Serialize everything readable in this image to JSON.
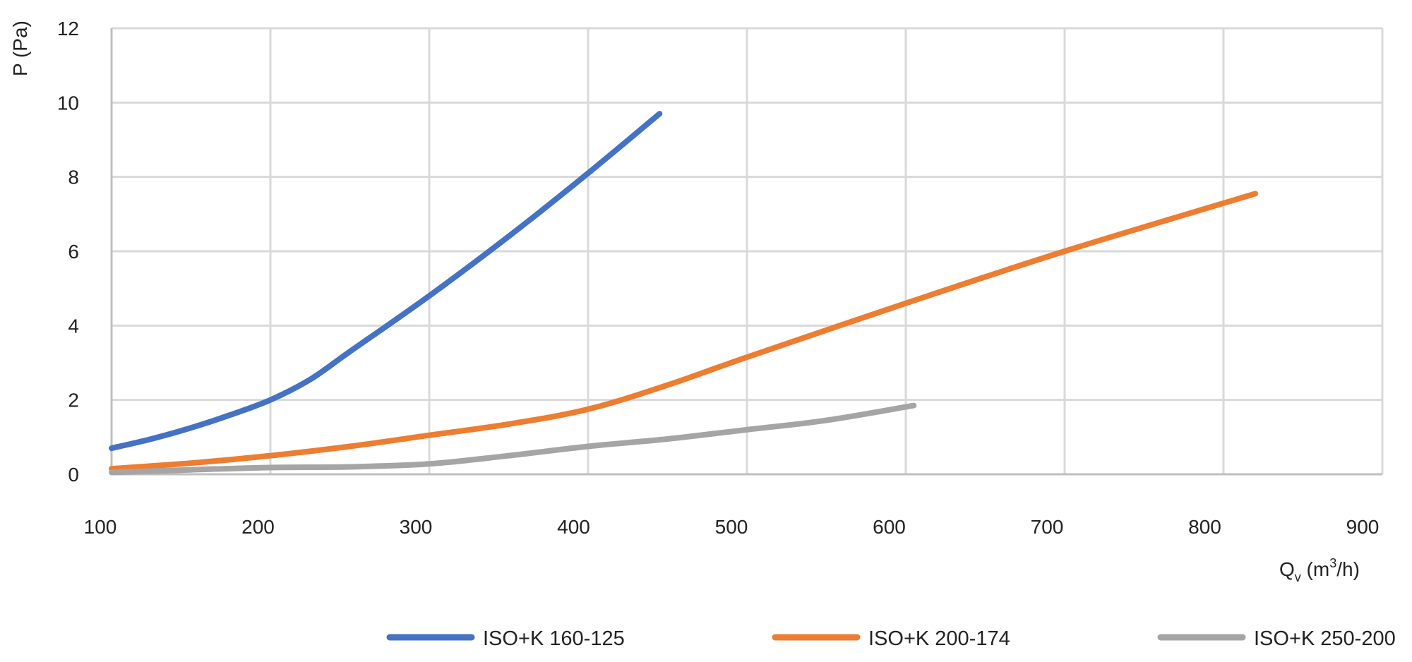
{
  "chart_data": {
    "type": "line",
    "title": "",
    "xlabel": {
      "main": "Q",
      "sub": "v",
      "unit_pre": " (m",
      "sup": "3",
      "unit_post": "/h)"
    },
    "ylabel": "P (Pa)",
    "xlim": [
      100,
      900
    ],
    "ylim": [
      0,
      12
    ],
    "xticks": [
      "100",
      "200",
      "300",
      "400",
      "500",
      "600",
      "700",
      "800",
      "900"
    ],
    "yticks": [
      "0",
      "2",
      "4",
      "6",
      "8",
      "10",
      "12"
    ],
    "grid": true,
    "legend_position": "bottom",
    "series": [
      {
        "name": "ISO+K 160-125",
        "color": "#4472C4",
        "points": [
          [
            100,
            0.7
          ],
          [
            125,
            0.95
          ],
          [
            150,
            1.25
          ],
          [
            175,
            1.6
          ],
          [
            200,
            2.0
          ],
          [
            225,
            2.55
          ],
          [
            250,
            3.3
          ],
          [
            300,
            4.8
          ],
          [
            350,
            6.4
          ],
          [
            400,
            8.1
          ],
          [
            445,
            9.7
          ]
        ]
      },
      {
        "name": "ISO+K 200-174",
        "color": "#ED7D31",
        "points": [
          [
            100,
            0.15
          ],
          [
            150,
            0.3
          ],
          [
            200,
            0.5
          ],
          [
            250,
            0.75
          ],
          [
            300,
            1.05
          ],
          [
            350,
            1.35
          ],
          [
            400,
            1.75
          ],
          [
            450,
            2.4
          ],
          [
            500,
            3.15
          ],
          [
            600,
            4.6
          ],
          [
            700,
            6.0
          ],
          [
            820,
            7.55
          ]
        ]
      },
      {
        "name": "ISO+K 250-200",
        "color": "#A5A5A5",
        "points": [
          [
            100,
            0.05
          ],
          [
            150,
            0.12
          ],
          [
            200,
            0.18
          ],
          [
            250,
            0.2
          ],
          [
            300,
            0.28
          ],
          [
            350,
            0.5
          ],
          [
            400,
            0.75
          ],
          [
            450,
            0.95
          ],
          [
            500,
            1.2
          ],
          [
            550,
            1.45
          ],
          [
            605,
            1.85
          ]
        ]
      }
    ]
  }
}
